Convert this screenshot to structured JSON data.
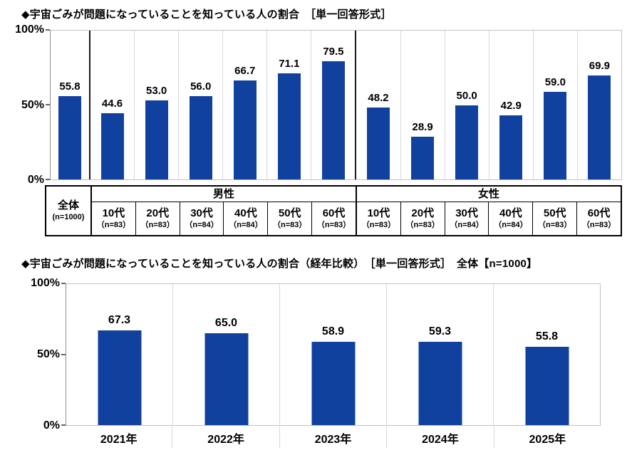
{
  "accent_color": "#11419E",
  "chart_data": [
    {
      "type": "bar",
      "title": "◆宇宙ごみが問題になっていることを知っている人の割合　［単一回答形式］",
      "ylim": [
        0,
        100
      ],
      "yticks": [
        100,
        50,
        0
      ],
      "ytick_labels": [
        "100%",
        "50%",
        "0%"
      ],
      "grid": "column-separators",
      "legend": "none",
      "bar_color": "#11419E",
      "group_headers": [
        {
          "label": "男性",
          "span": 6
        },
        {
          "label": "女性",
          "span": 6
        }
      ],
      "columns": [
        {
          "group": "total",
          "label": "全体",
          "n": "(n=1000)",
          "value": 55.8
        },
        {
          "group": "male",
          "label": "10代",
          "n": "（n=83）",
          "value": 44.6
        },
        {
          "group": "male",
          "label": "20代",
          "n": "（n=83）",
          "value": 53.0
        },
        {
          "group": "male",
          "label": "30代",
          "n": "（n=84）",
          "value": 56.0
        },
        {
          "group": "male",
          "label": "40代",
          "n": "（n=84）",
          "value": 66.7
        },
        {
          "group": "male",
          "label": "50代",
          "n": "（n=83）",
          "value": 71.1
        },
        {
          "group": "male",
          "label": "60代",
          "n": "（n=83）",
          "value": 79.5
        },
        {
          "group": "female",
          "label": "10代",
          "n": "（n=83）",
          "value": 48.2
        },
        {
          "group": "female",
          "label": "20代",
          "n": "（n=83）",
          "value": 28.9
        },
        {
          "group": "female",
          "label": "30代",
          "n": "（n=84）",
          "value": 50.0
        },
        {
          "group": "female",
          "label": "40代",
          "n": "（n=84）",
          "value": 42.9
        },
        {
          "group": "female",
          "label": "50代",
          "n": "（n=83）",
          "value": 59.0
        },
        {
          "group": "female",
          "label": "60代",
          "n": "（n=83）",
          "value": 69.9
        }
      ]
    },
    {
      "type": "bar",
      "title": "◆宇宙ごみが問題になっていることを知っている人の割合（経年比較）　［単一回答形式］　全体【n=1000】",
      "ylim": [
        0,
        100
      ],
      "yticks": [
        100,
        50,
        0
      ],
      "ytick_labels": [
        "100%",
        "50%",
        "0%"
      ],
      "grid": "column-separators",
      "legend": "none",
      "bar_color": "#11419E",
      "categories": [
        "2021年",
        "2022年",
        "2023年",
        "2024年",
        "2025年"
      ],
      "values": [
        67.3,
        65.0,
        58.9,
        59.3,
        55.8
      ]
    }
  ]
}
